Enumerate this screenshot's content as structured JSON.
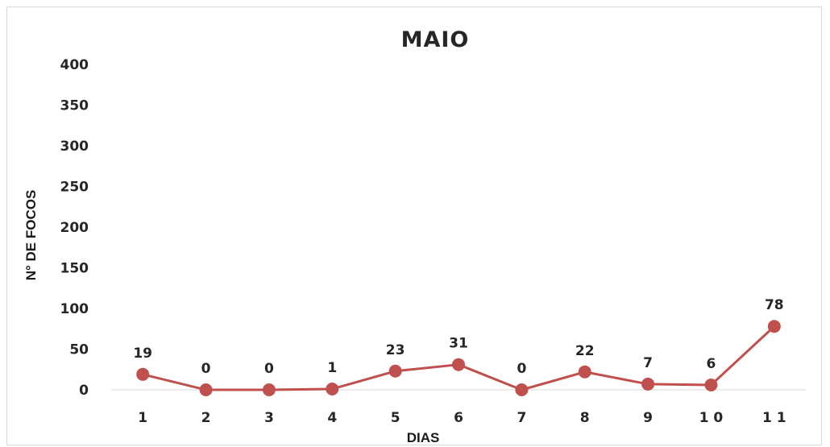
{
  "chart_data": {
    "type": "line",
    "title": "MAIO",
    "xlabel": "DIAS",
    "ylabel": "N° DE FOCOS",
    "categories": [
      "1",
      "2",
      "3",
      "4",
      "5",
      "6",
      "7",
      "8",
      "9",
      "1 0",
      "1 1"
    ],
    "series": [
      {
        "values": [
          19,
          0,
          0,
          1,
          23,
          31,
          0,
          22,
          7,
          6,
          78
        ]
      }
    ],
    "ylim": [
      0,
      400
    ],
    "yticks": [
      0,
      50,
      100,
      150,
      200,
      250,
      300,
      350,
      400
    ],
    "grid": false,
    "legend": "none",
    "colors": {
      "line": "#c0504d",
      "marker": "#c0504d",
      "text": "#262626"
    }
  }
}
